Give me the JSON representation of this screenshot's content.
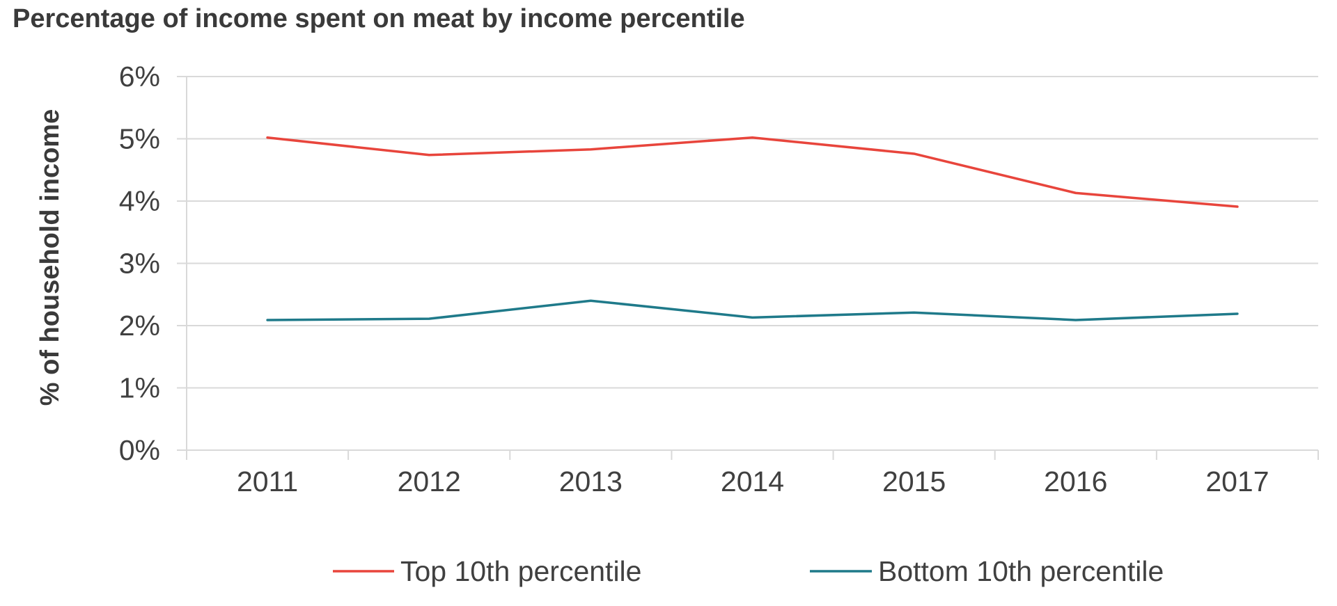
{
  "chart_data": {
    "type": "line",
    "title": "Percentage of income spent on meat by income percentile",
    "ylabel": "% of household income",
    "xlabel": "",
    "categories": [
      "2011",
      "2012",
      "2013",
      "2014",
      "2015",
      "2016",
      "2017"
    ],
    "ylim": [
      0,
      6
    ],
    "yticks": [
      0,
      1,
      2,
      3,
      4,
      5,
      6
    ],
    "ytick_labels": [
      "0%",
      "1%",
      "2%",
      "3%",
      "4%",
      "5%",
      "6%"
    ],
    "grid": true,
    "legend_position": "bottom",
    "series": [
      {
        "name": "Top 10th percentile",
        "color": "#e8453c",
        "values": [
          5.02,
          4.74,
          4.83,
          5.02,
          4.76,
          4.13,
          3.91
        ]
      },
      {
        "name": "Bottom 10th percentile",
        "color": "#1f7a8a",
        "values": [
          2.09,
          2.11,
          2.4,
          2.13,
          2.21,
          2.09,
          2.19
        ]
      }
    ],
    "colors": {
      "grid": "#d9d9d9",
      "axis": "#d9d9d9"
    }
  }
}
